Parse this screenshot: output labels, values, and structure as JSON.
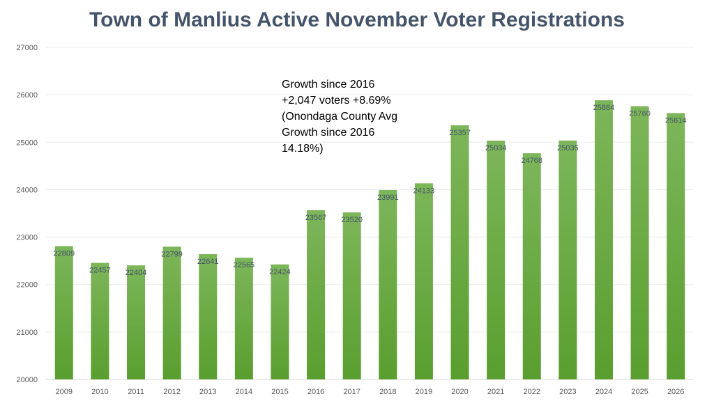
{
  "chart_data": {
    "type": "bar",
    "title": "Town of Manlius Active November Voter Registrations",
    "xlabel": "",
    "ylabel": "",
    "categories": [
      "2009",
      "2010",
      "2011",
      "2012",
      "2013",
      "2014",
      "2015",
      "2016",
      "2017",
      "2018",
      "2019",
      "2020",
      "2021",
      "2022",
      "2023",
      "2024",
      "2025",
      "2026"
    ],
    "values": [
      22809,
      22457,
      22404,
      22799,
      22641,
      22565,
      22424,
      23567,
      23520,
      23991,
      24133,
      25357,
      25034,
      24768,
      25035,
      25884,
      25760,
      25614
    ],
    "ylim": [
      20000,
      27000
    ],
    "yticks": [
      "20000",
      "21000",
      "22000",
      "23000",
      "24000",
      "25000",
      "26000",
      "27000"
    ],
    "grid": true,
    "data_labels": true,
    "bar_color_top": "#7db65a",
    "bar_color_bottom": "#5a9e2f",
    "annotation": [
      "Growth since 2016",
      "+2,047 voters +8.69%",
      "(Onondaga County Avg",
      "Growth since 2016",
      "14.18%)"
    ]
  }
}
